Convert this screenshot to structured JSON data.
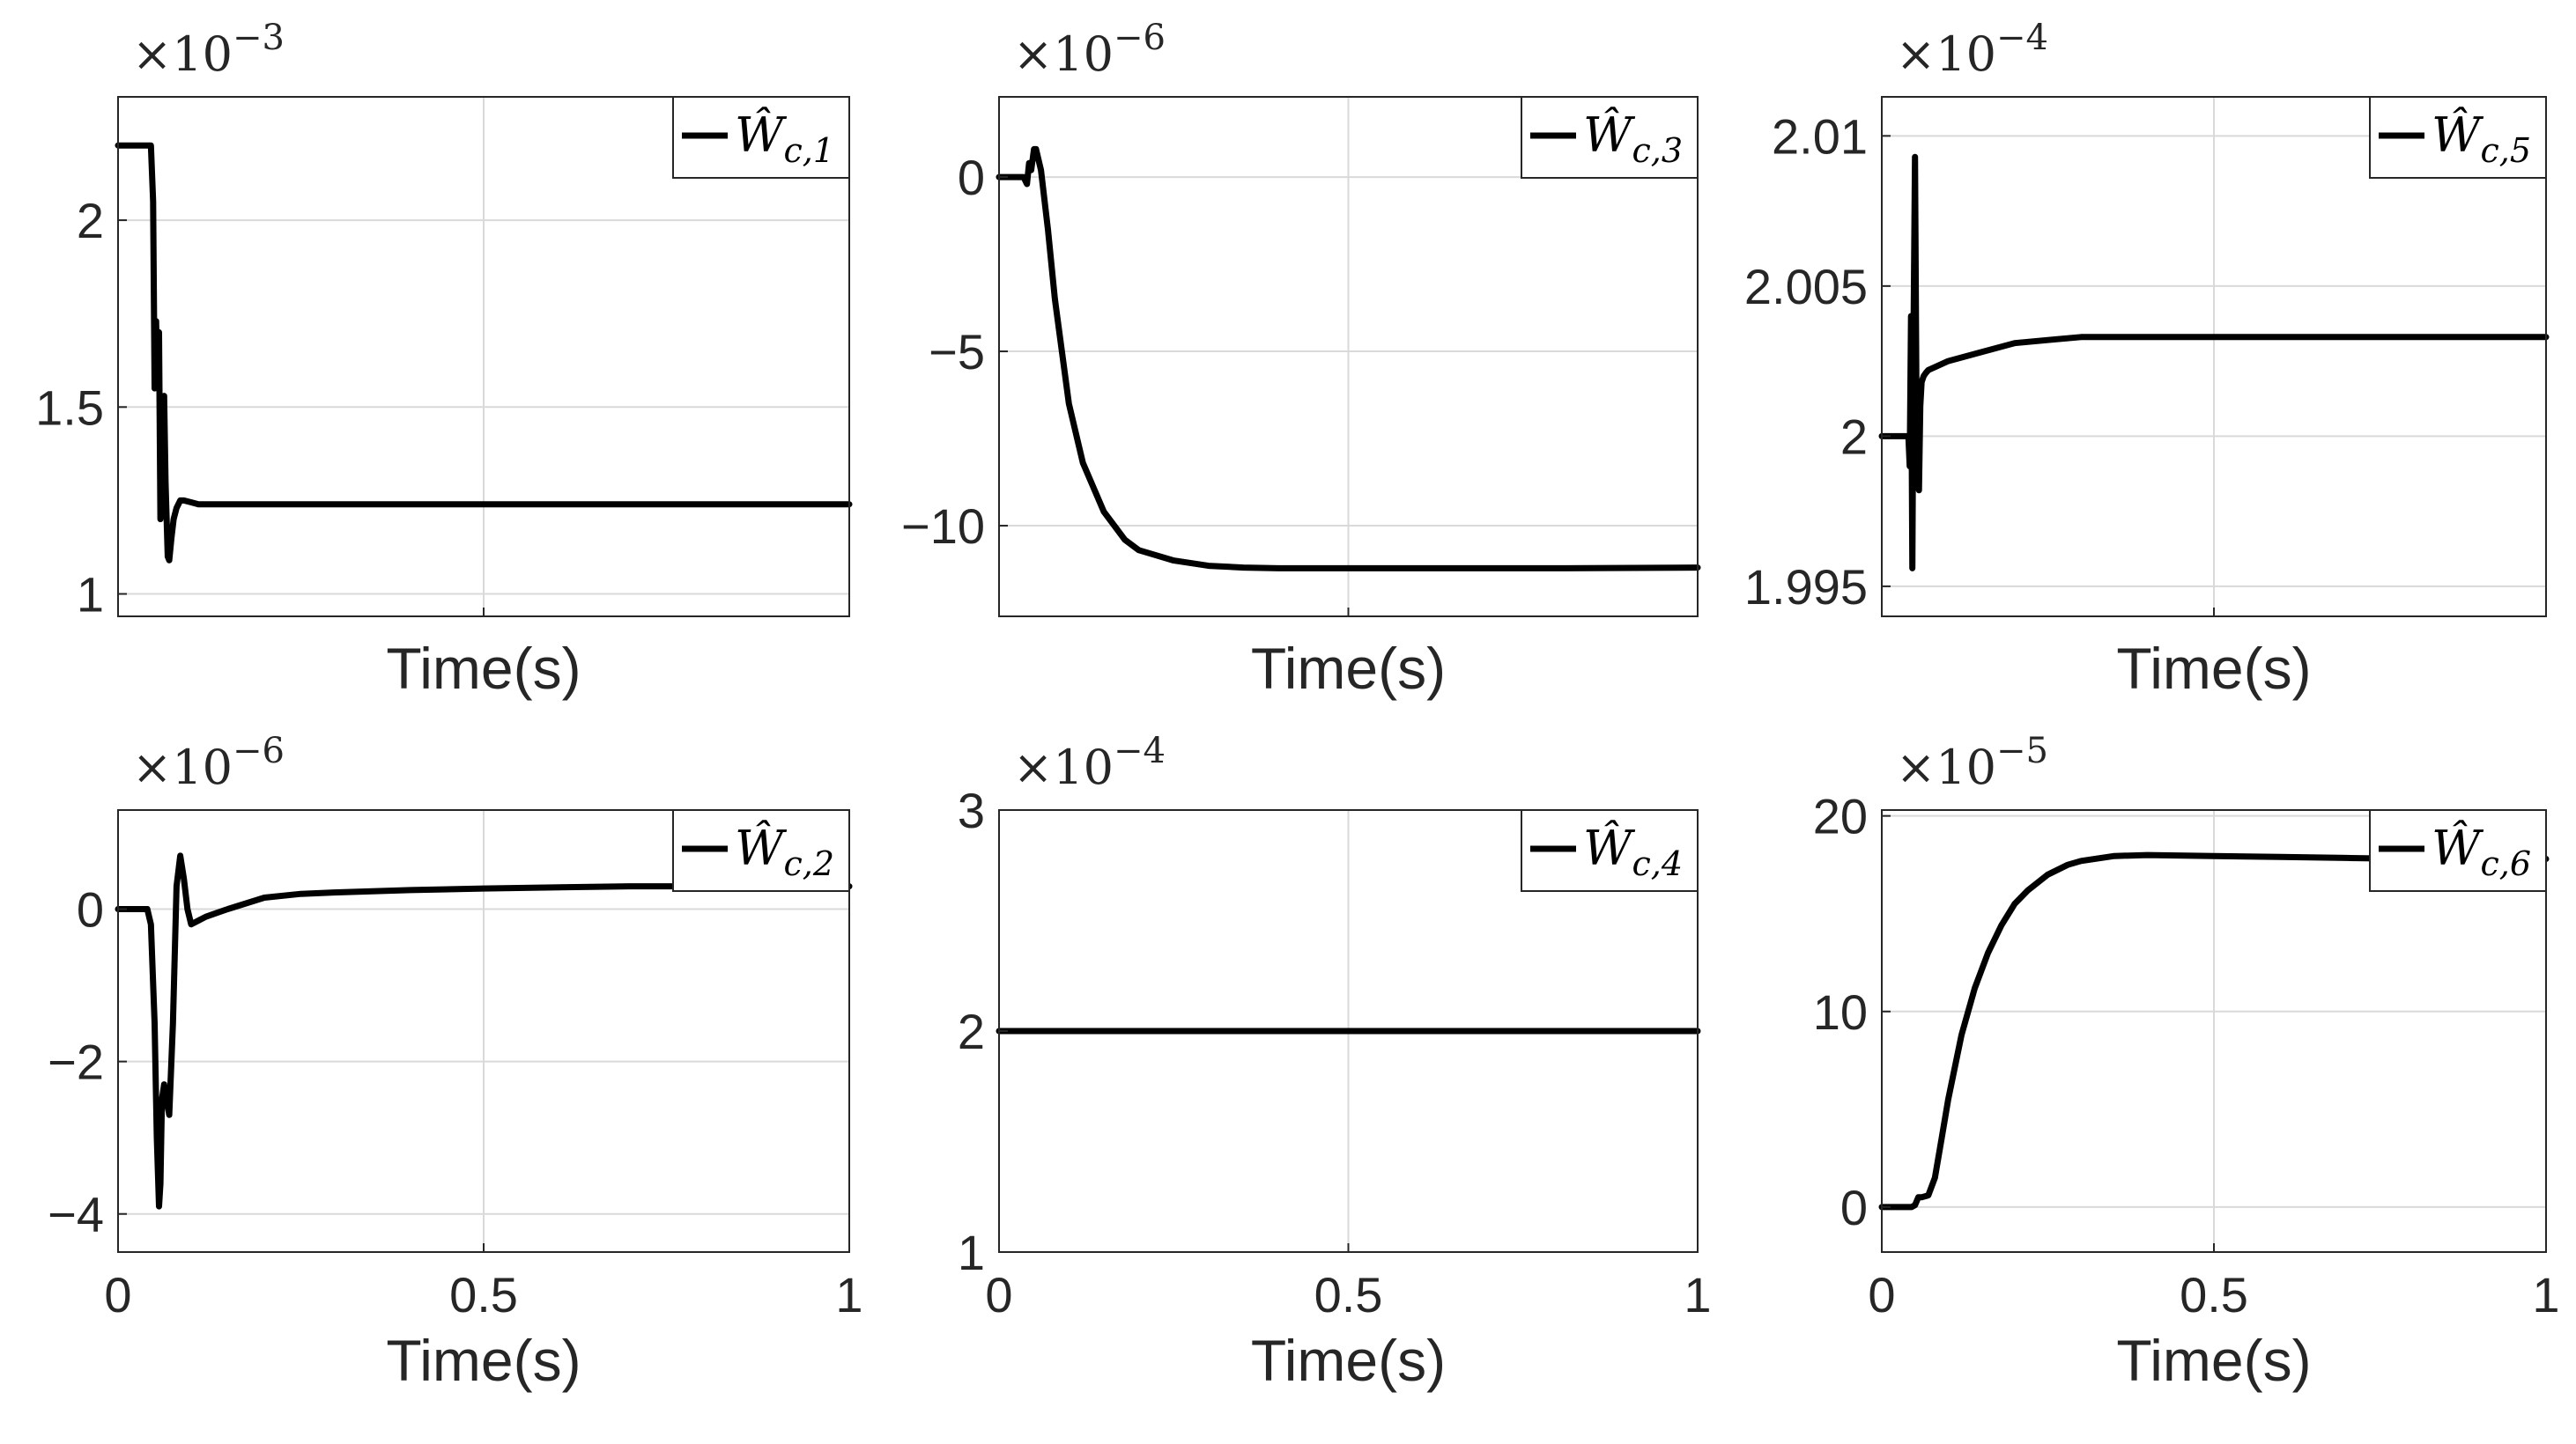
{
  "chart_data": [
    {
      "type": "line",
      "id": "wc1",
      "legend": {
        "base": "Ŵ",
        "sub": "c,1",
        "position": "top-right"
      },
      "multiplier": {
        "base": "×10",
        "exp": "−3"
      },
      "xlabel": "Time(s)",
      "ylabel": "",
      "xlim": [
        0,
        1
      ],
      "ylim": [
        0.94,
        2.33
      ],
      "grid": true,
      "xticks": [],
      "yticks": [
        1,
        1.5,
        2
      ],
      "ytick_labels": [
        "1",
        "1.5",
        "2"
      ],
      "series": [
        {
          "name": "Ŵc,1",
          "x": [
            0,
            0.045,
            0.048,
            0.05,
            0.052,
            0.054,
            0.056,
            0.058,
            0.06,
            0.063,
            0.065,
            0.068,
            0.07,
            0.073,
            0.076,
            0.08,
            0.085,
            0.09,
            0.1,
            0.11,
            0.13,
            0.16,
            0.2,
            0.3,
            0.5,
            1
          ],
          "y": [
            2.2,
            2.2,
            2.05,
            1.55,
            1.73,
            1.55,
            1.7,
            1.2,
            1.45,
            1.53,
            1.3,
            1.1,
            1.09,
            1.15,
            1.2,
            1.23,
            1.25,
            1.25,
            1.245,
            1.24,
            1.24,
            1.24,
            1.24,
            1.24,
            1.24,
            1.24
          ]
        }
      ]
    },
    {
      "type": "line",
      "id": "wc3",
      "legend": {
        "base": "Ŵ",
        "sub": "c,3",
        "position": "top-right"
      },
      "multiplier": {
        "base": "×10",
        "exp": "−6"
      },
      "xlabel": "Time(s)",
      "ylabel": "",
      "xlim": [
        0,
        1
      ],
      "ylim": [
        -12.6,
        2.3
      ],
      "grid": true,
      "xticks": [],
      "yticks": [
        -10,
        -5,
        0
      ],
      "ytick_labels": [
        "−10",
        "−5",
        "0"
      ],
      "series": [
        {
          "name": "Ŵc,3",
          "x": [
            0,
            0.035,
            0.04,
            0.043,
            0.046,
            0.05,
            0.053,
            0.06,
            0.07,
            0.08,
            0.1,
            0.12,
            0.15,
            0.18,
            0.2,
            0.25,
            0.3,
            0.35,
            0.4,
            0.5,
            0.6,
            0.8,
            1
          ],
          "y": [
            0,
            0,
            -0.2,
            0.4,
            0.2,
            0.8,
            0.8,
            0.2,
            -1.5,
            -3.5,
            -6.5,
            -8.2,
            -9.6,
            -10.4,
            -10.7,
            -11.0,
            -11.15,
            -11.2,
            -11.22,
            -11.22,
            -11.22,
            -11.22,
            -11.2
          ]
        }
      ]
    },
    {
      "type": "line",
      "id": "wc5",
      "legend": {
        "base": "Ŵ",
        "sub": "c,5",
        "position": "top-right"
      },
      "multiplier": {
        "base": "×10",
        "exp": "−4"
      },
      "xlabel": "Time(s)",
      "ylabel": "",
      "xlim": [
        0,
        1
      ],
      "ylim": [
        1.994,
        2.0113
      ],
      "grid": true,
      "xticks": [],
      "yticks": [
        1.995,
        2,
        2.005,
        2.01
      ],
      "ytick_labels": [
        "1.995",
        "2",
        "2.005",
        "2.01"
      ],
      "series": [
        {
          "name": "Ŵc,5",
          "x": [
            0,
            0.04,
            0.042,
            0.044,
            0.046,
            0.048,
            0.05,
            0.052,
            0.054,
            0.056,
            0.058,
            0.06,
            0.063,
            0.066,
            0.07,
            0.08,
            0.1,
            0.15,
            0.2,
            0.25,
            0.3,
            0.35,
            0.4,
            0.5,
            0.6,
            0.8,
            1
          ],
          "y": [
            2.0,
            2.0,
            1.999,
            2.004,
            1.9956,
            2.004,
            2.0093,
            2.002,
            1.9985,
            1.9982,
            2.001,
            2.0018,
            2.002,
            2.0021,
            2.0022,
            2.0023,
            2.0025,
            2.0028,
            2.0031,
            2.0032,
            2.0033,
            2.0033,
            2.0033,
            2.0033,
            2.0033,
            2.0033,
            2.0033
          ]
        }
      ]
    },
    {
      "type": "line",
      "id": "wc2",
      "legend": {
        "base": "Ŵ",
        "sub": "c,2",
        "position": "top-right"
      },
      "multiplier": {
        "base": "×10",
        "exp": "−6"
      },
      "xlabel": "Time(s)",
      "ylabel": "",
      "xlim": [
        0,
        1
      ],
      "ylim": [
        -4.5,
        1.3
      ],
      "grid": true,
      "xticks": [
        0,
        0.5,
        1
      ],
      "xtick_labels": [
        "0",
        "0.5",
        "1"
      ],
      "yticks": [
        -4,
        -2,
        0
      ],
      "ytick_labels": [
        "−4",
        "−2",
        "0"
      ],
      "series": [
        {
          "name": "Ŵc,2",
          "x": [
            0,
            0.04,
            0.045,
            0.05,
            0.053,
            0.056,
            0.058,
            0.06,
            0.063,
            0.066,
            0.07,
            0.075,
            0.08,
            0.085,
            0.09,
            0.095,
            0.1,
            0.11,
            0.12,
            0.15,
            0.2,
            0.25,
            0.3,
            0.4,
            0.5,
            0.7,
            0.75,
            1
          ],
          "y": [
            0,
            0,
            -0.2,
            -1.5,
            -3.0,
            -3.9,
            -3.6,
            -2.5,
            -2.3,
            -2.5,
            -2.7,
            -1.5,
            0.3,
            0.7,
            0.4,
            0.0,
            -0.2,
            -0.15,
            -0.1,
            0.0,
            0.15,
            0.2,
            0.22,
            0.25,
            0.27,
            0.3,
            0.3,
            0.3
          ]
        }
      ]
    },
    {
      "type": "line",
      "id": "wc4",
      "legend": {
        "base": "Ŵ",
        "sub": "c,4",
        "position": "top-right"
      },
      "multiplier": {
        "base": "×10",
        "exp": "−4"
      },
      "xlabel": "Time(s)",
      "ylabel": "",
      "xlim": [
        0,
        1
      ],
      "ylim": [
        1,
        3
      ],
      "grid": true,
      "xticks": [
        0,
        0.5,
        1
      ],
      "xtick_labels": [
        "0",
        "0.5",
        "1"
      ],
      "yticks": [
        1,
        2,
        3
      ],
      "ytick_labels": [
        "1",
        "2",
        "3"
      ],
      "series": [
        {
          "name": "Ŵc,4",
          "x": [
            0,
            1
          ],
          "y": [
            2,
            2
          ]
        }
      ]
    },
    {
      "type": "line",
      "id": "wc6",
      "legend": {
        "base": "Ŵ",
        "sub": "c,6",
        "position": "top-right"
      },
      "multiplier": {
        "base": "×10",
        "exp": "−5"
      },
      "xlabel": "Time(s)",
      "ylabel": "",
      "xlim": [
        0,
        1
      ],
      "ylim": [
        -2.3,
        20.3
      ],
      "grid": true,
      "xticks": [
        0,
        0.5,
        1
      ],
      "xtick_labels": [
        "0",
        "0.5",
        "1"
      ],
      "yticks": [
        0,
        10,
        20
      ],
      "ytick_labels": [
        "0",
        "10",
        "20"
      ],
      "series": [
        {
          "name": "Ŵc,6",
          "x": [
            0,
            0.045,
            0.05,
            0.055,
            0.06,
            0.07,
            0.08,
            0.09,
            0.1,
            0.12,
            0.14,
            0.16,
            0.18,
            0.2,
            0.22,
            0.25,
            0.28,
            0.3,
            0.35,
            0.4,
            0.5,
            0.6,
            0.7,
            0.8,
            0.9,
            1
          ],
          "y": [
            0,
            0,
            0.1,
            0.5,
            0.5,
            0.6,
            1.5,
            3.5,
            5.5,
            8.8,
            11.2,
            13.0,
            14.4,
            15.5,
            16.2,
            17.0,
            17.5,
            17.7,
            17.95,
            18.0,
            17.95,
            17.9,
            17.85,
            17.8,
            17.8,
            17.8
          ]
        }
      ]
    }
  ]
}
